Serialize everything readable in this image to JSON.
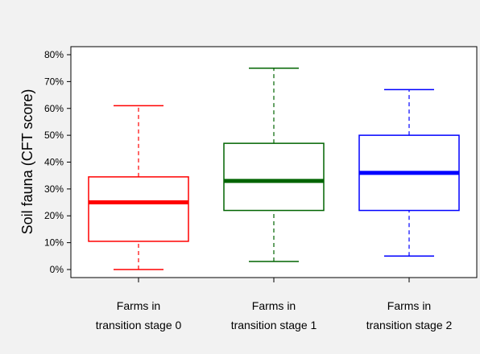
{
  "chart_data": {
    "type": "boxplot",
    "title": "",
    "xlabel": "",
    "ylabel": "Soil fauna (CFT score)",
    "ylim": [
      -0.03,
      0.83
    ],
    "yticks": [
      {
        "value": 0.0,
        "label": "0%"
      },
      {
        "value": 0.1,
        "label": "10%"
      },
      {
        "value": 0.2,
        "label": "20%"
      },
      {
        "value": 0.3,
        "label": "30%"
      },
      {
        "value": 0.4,
        "label": "40%"
      },
      {
        "value": 0.5,
        "label": "50%"
      },
      {
        "value": 0.6,
        "label": "60%"
      },
      {
        "value": 0.7,
        "label": "70%"
      },
      {
        "value": 0.8,
        "label": "80%"
      }
    ],
    "categories": [
      {
        "line1": "Farms in",
        "line2": "transition stage 0"
      },
      {
        "line1": "Farms in",
        "line2": "transition stage 1"
      },
      {
        "line1": "Farms in",
        "line2": "transition stage 2"
      }
    ],
    "boxes": [
      {
        "min": 0.0,
        "q1": 0.105,
        "median": 0.25,
        "q3": 0.345,
        "max": 0.61,
        "color": "#ff0000"
      },
      {
        "min": 0.03,
        "q1": 0.22,
        "median": 0.33,
        "q3": 0.47,
        "max": 0.75,
        "color": "#006400"
      },
      {
        "min": 0.05,
        "q1": 0.22,
        "median": 0.36,
        "q3": 0.5,
        "max": 0.67,
        "color": "#0000ff"
      }
    ],
    "grid": false,
    "legend": "none"
  }
}
